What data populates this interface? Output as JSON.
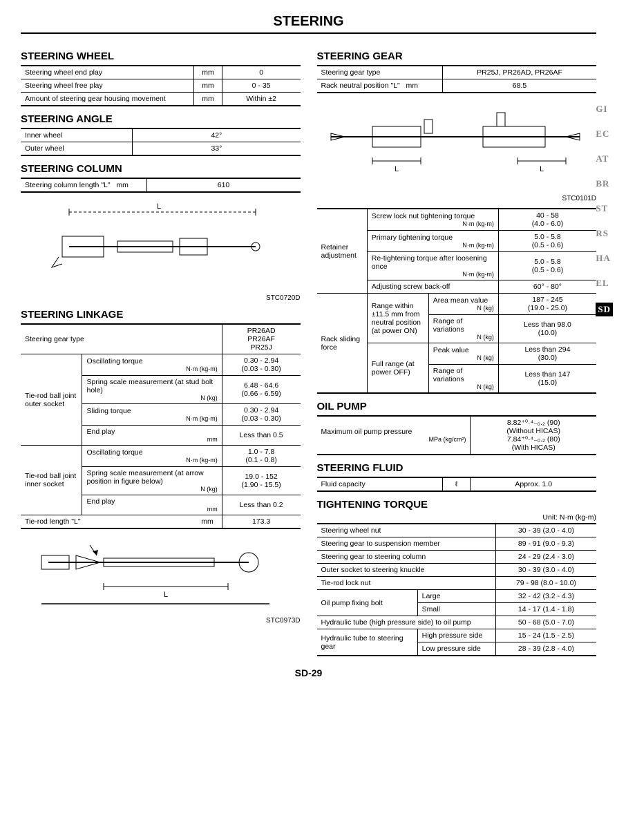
{
  "page_title": "STEERING",
  "page_number": "SD-29",
  "side_tabs": [
    "GI",
    "EC",
    "AT",
    "BR",
    "ST",
    "RS",
    "HA",
    "EL",
    "SD"
  ],
  "active_tab": "SD",
  "left": {
    "wheel_title": "STEERING WHEEL",
    "wheel_rows": [
      {
        "label": "Steering wheel end play",
        "unit": "mm",
        "val": "0"
      },
      {
        "label": "Steering wheel free play",
        "unit": "mm",
        "val": "0 - 35"
      },
      {
        "label": "Amount of steering gear housing movement",
        "unit": "mm",
        "val": "Within ±2"
      }
    ],
    "angle_title": "STEERING ANGLE",
    "angle_rows": [
      {
        "label": "Inner wheel",
        "val": "42°"
      },
      {
        "label": "Outer wheel",
        "val": "33°"
      }
    ],
    "column_title": "STEERING COLUMN",
    "column_rows": [
      {
        "label": "Steering column length \"L\"",
        "unit": "mm",
        "val": "610"
      }
    ],
    "column_fig": "STC0720D",
    "linkage_title": "STEERING LINKAGE",
    "linkage_header_label": "Steering gear type",
    "linkage_header_val": "PR26AD\nPR26AF\nPR25J",
    "linkage_groups": [
      {
        "name": "Tie-rod ball joint outer socket",
        "rows": [
          {
            "label": "Oscillating torque",
            "unit": "N·m (kg-m)",
            "val": "0.30 - 2.94\n(0.03 - 0.30)"
          },
          {
            "label": "Spring scale measurement (at stud bolt hole)",
            "unit": "N (kg)",
            "val": "6.48 - 64.6\n(0.66 - 6.59)"
          },
          {
            "label": "Sliding torque",
            "unit": "N·m (kg-m)",
            "val": "0.30 - 2.94\n(0.03 - 0.30)"
          },
          {
            "label": "End play",
            "unit": "mm",
            "val": "Less than 0.5"
          }
        ]
      },
      {
        "name": "Tie-rod ball joint inner socket",
        "rows": [
          {
            "label": "Oscillating torque",
            "unit": "N·m (kg-m)",
            "val": "1.0 - 7.8\n(0.1 - 0.8)"
          },
          {
            "label": "Spring scale measurement (at arrow position in figure below)",
            "unit": "N (kg)",
            "val": "19.0 - 152\n(1.90 - 15.5)"
          },
          {
            "label": "End play",
            "unit": "mm",
            "val": "Less than 0.2"
          }
        ]
      }
    ],
    "tierod_len_label": "Tie-rod length \"L\"",
    "tierod_len_unit": "mm",
    "tierod_len_val": "173.3",
    "tierod_fig": "STC0973D"
  },
  "right": {
    "gear_title": "STEERING GEAR",
    "gear_rows": [
      {
        "label": "Steering gear type",
        "unit": "",
        "val": "PR25J, PR26AD, PR26AF"
      },
      {
        "label": "Rack neutral position \"L\"",
        "unit": "mm",
        "val": "68.5"
      }
    ],
    "gear_fig": "STC0101D",
    "retainer_label": "Retainer adjustment",
    "retainer_rows": [
      {
        "label": "Screw lock nut tightening torque",
        "unit": "N·m (kg-m)",
        "val": "40 - 58\n(4.0 - 6.0)"
      },
      {
        "label": "Primary tightening torque",
        "unit": "N·m (kg-m)",
        "val": "5.0 - 5.8\n(0.5 - 0.6)"
      },
      {
        "label": "Re-tightening torque after loosening once",
        "unit": "N·m (kg-m)",
        "val": "5.0 - 5.8\n(0.5 - 0.6)"
      },
      {
        "label": "Adjusting screw back-off",
        "unit": "",
        "val": "60° - 80°"
      }
    ],
    "rack_label": "Rack sliding force",
    "rack_sub1": "Range within ±11.5 mm from neutral position (at power ON)",
    "rack_sub2": "Full range (at power OFF)",
    "rack_rows": [
      {
        "sub": "Area mean value",
        "unit": "N (kg)",
        "val": "187 - 245\n(19.0 - 25.0)"
      },
      {
        "sub": "Range of variations",
        "unit": "N (kg)",
        "val": "Less than 98.0\n(10.0)"
      },
      {
        "sub": "Peak value",
        "unit": "N (kg)",
        "val": "Less than 294\n(30.0)"
      },
      {
        "sub": "Range of variations",
        "unit": "N (kg)",
        "val": "Less than 147\n(15.0)"
      }
    ],
    "oil_title": "OIL PUMP",
    "oil_label": "Maximum oil pump pressure",
    "oil_unit": "MPa (kg/cm²)",
    "oil_val": "8.82⁺⁰·⁴₋₀.₂ (90)\n(Without HICAS)\n7.84⁺⁰·⁴₋₀.₂ (80)\n(With HICAS)",
    "fluid_title": "STEERING FLUID",
    "fluid_label": "Fluid capacity",
    "fluid_unit": "ℓ",
    "fluid_val": "Approx. 1.0",
    "torque_title": "TIGHTENING TORQUE",
    "torque_unit": "Unit: N·m (kg-m)",
    "torque_rows": [
      {
        "label": "Steering wheel nut",
        "val": "30 - 39 (3.0 - 4.0)"
      },
      {
        "label": "Steering gear to suspension member",
        "val": "89 - 91 (9.0 - 9.3)"
      },
      {
        "label": "Steering gear to steering column",
        "val": "24 - 29 (2.4 - 3.0)"
      },
      {
        "label": "Outer socket to steering knuckle",
        "val": "30 - 39 (3.0 - 4.0)"
      },
      {
        "label": "Tie-rod lock nut",
        "val": "79 - 98 (8.0 - 10.0)"
      }
    ],
    "oilbolt_label": "Oil pump fixing bolt",
    "oilbolt_rows": [
      {
        "sub": "Large",
        "val": "32 - 42 (3.2 - 4.3)"
      },
      {
        "sub": "Small",
        "val": "14 - 17 (1.4 - 1.8)"
      }
    ],
    "hydraulic_pump_label": "Hydraulic tube (high pressure side) to oil pump",
    "hydraulic_pump_val": "50 - 68 (5.0 - 7.0)",
    "hydraulic_gear_label": "Hydraulic tube to steering gear",
    "hydraulic_gear_rows": [
      {
        "sub": "High pressure side",
        "val": "15 - 24 (1.5 - 2.5)"
      },
      {
        "sub": "Low pressure side",
        "val": "28 - 39 (2.8 - 4.0)"
      }
    ]
  }
}
